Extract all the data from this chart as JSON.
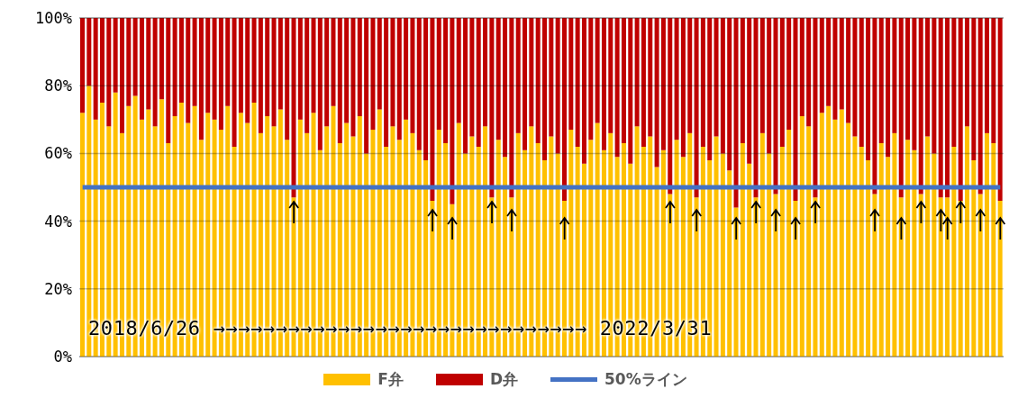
{
  "chart_data": {
    "type": "bar",
    "stacked": true,
    "categories": [
      null,
      null,
      null,
      null,
      null,
      null,
      null,
      null,
      null,
      null,
      null,
      null,
      null,
      null,
      null,
      null,
      null,
      null,
      null,
      null,
      null,
      null,
      null,
      null,
      null,
      null,
      null,
      null,
      null,
      null,
      null,
      null,
      null,
      null,
      null,
      null,
      null,
      null,
      null,
      null,
      null,
      null,
      null,
      null,
      null,
      null,
      null,
      null,
      null,
      null,
      null,
      null,
      null,
      null,
      null,
      null,
      null,
      null,
      null,
      null,
      null,
      null,
      null,
      null,
      null,
      null,
      null,
      null,
      null,
      null,
      null,
      null,
      null,
      null,
      null,
      null,
      null,
      null,
      null,
      null,
      null,
      null,
      null,
      null,
      null,
      null,
      null,
      null,
      null,
      null,
      null,
      null,
      null,
      null,
      null,
      null,
      null,
      null,
      null,
      null,
      null,
      null,
      null,
      null,
      null,
      null,
      null,
      null,
      null,
      null,
      null,
      null,
      null,
      null,
      null,
      null,
      null,
      null,
      null,
      null,
      null,
      null,
      null,
      null,
      null,
      null,
      null,
      null,
      null,
      null,
      null,
      null,
      null,
      null,
      null,
      null,
      null,
      null,
      null,
      null
    ],
    "series": [
      {
        "name": "F弁",
        "color": "#ffc000",
        "values": [
          72,
          80,
          70,
          75,
          68,
          78,
          66,
          74,
          77,
          70,
          73,
          68,
          76,
          63,
          71,
          75,
          69,
          74,
          64,
          72,
          70,
          67,
          74,
          62,
          72,
          69,
          75,
          66,
          71,
          68,
          73,
          64,
          47,
          70,
          66,
          72,
          61,
          68,
          74,
          63,
          69,
          65,
          71,
          60,
          67,
          73,
          62,
          68,
          64,
          70,
          66,
          61,
          58,
          46,
          67,
          63,
          45,
          69,
          60,
          65,
          62,
          68,
          47,
          64,
          59,
          47,
          66,
          61,
          68,
          63,
          58,
          65,
          60,
          46,
          67,
          62,
          57,
          64,
          69,
          61,
          66,
          59,
          63,
          57,
          68,
          62,
          65,
          56,
          61,
          48,
          64,
          59,
          66,
          47,
          62,
          58,
          65,
          60,
          55,
          44,
          63,
          57,
          47,
          66,
          60,
          48,
          62,
          67,
          46,
          71,
          68,
          47,
          72,
          74,
          70,
          73,
          69,
          65,
          62,
          58,
          48,
          63,
          59,
          66,
          47,
          64,
          61,
          48,
          65,
          60,
          47,
          47,
          62,
          46,
          68,
          58,
          48,
          66,
          63,
          46
        ]
      },
      {
        "name": "D弁",
        "color": "#c00000",
        "values": [
          28,
          20,
          30,
          25,
          32,
          22,
          34,
          26,
          23,
          30,
          27,
          32,
          24,
          37,
          29,
          25,
          31,
          26,
          36,
          28,
          30,
          33,
          26,
          38,
          28,
          31,
          25,
          34,
          29,
          32,
          27,
          36,
          53,
          30,
          34,
          28,
          39,
          32,
          26,
          37,
          31,
          35,
          29,
          40,
          33,
          27,
          38,
          32,
          36,
          30,
          34,
          39,
          42,
          54,
          33,
          37,
          55,
          31,
          40,
          35,
          38,
          32,
          53,
          36,
          41,
          53,
          34,
          39,
          32,
          37,
          42,
          35,
          40,
          54,
          33,
          38,
          43,
          36,
          31,
          39,
          34,
          41,
          37,
          43,
          32,
          38,
          35,
          44,
          39,
          52,
          36,
          41,
          34,
          53,
          38,
          42,
          35,
          40,
          45,
          56,
          37,
          43,
          53,
          34,
          40,
          52,
          38,
          33,
          54,
          29,
          32,
          53,
          28,
          26,
          30,
          27,
          31,
          35,
          38,
          42,
          52,
          37,
          41,
          34,
          53,
          36,
          39,
          52,
          35,
          40,
          53,
          53,
          38,
          54,
          32,
          42,
          52,
          34,
          37,
          54
        ]
      },
      {
        "name": "50%ライン",
        "type": "line",
        "color": "#4472c4",
        "values": [
          50,
          50,
          50,
          50,
          50,
          50,
          50,
          50,
          50,
          50,
          50,
          50,
          50,
          50,
          50,
          50,
          50,
          50,
          50,
          50,
          50,
          50,
          50,
          50,
          50,
          50,
          50,
          50,
          50,
          50,
          50,
          50,
          50,
          50,
          50,
          50,
          50,
          50,
          50,
          50,
          50,
          50,
          50,
          50,
          50,
          50,
          50,
          50,
          50,
          50,
          50,
          50,
          50,
          50,
          50,
          50,
          50,
          50,
          50,
          50,
          50,
          50,
          50,
          50,
          50,
          50,
          50,
          50,
          50,
          50,
          50,
          50,
          50,
          50,
          50,
          50,
          50,
          50,
          50,
          50,
          50,
          50,
          50,
          50,
          50,
          50,
          50,
          50,
          50,
          50,
          50,
          50,
          50,
          50,
          50,
          50,
          50,
          50,
          50,
          50,
          50,
          50,
          50,
          50,
          50,
          50,
          50,
          50,
          50,
          50,
          50,
          50,
          50,
          50,
          50,
          50,
          50,
          50,
          50,
          50,
          50,
          50,
          50,
          50,
          50,
          50,
          50,
          50,
          50,
          50,
          50,
          50,
          50,
          50,
          50,
          50,
          50,
          50,
          50,
          50
        ]
      }
    ],
    "ylim": [
      0,
      100
    ],
    "yticks": [
      {
        "value": 0,
        "label": "0%"
      },
      {
        "value": 20,
        "label": "20%"
      },
      {
        "value": 40,
        "label": "40%"
      },
      {
        "value": 60,
        "label": "60%"
      },
      {
        "value": 80,
        "label": "80%"
      },
      {
        "value": 100,
        "label": "100%"
      }
    ],
    "grid": "y",
    "legend": "bottom",
    "tick_labels": "y",
    "marker": "none",
    "annotations": [
      "2018/6/26 →→→→→→→→→→→→→→→→→→→→→→→→→→→→→→ 2022/3/31"
    ]
  }
}
